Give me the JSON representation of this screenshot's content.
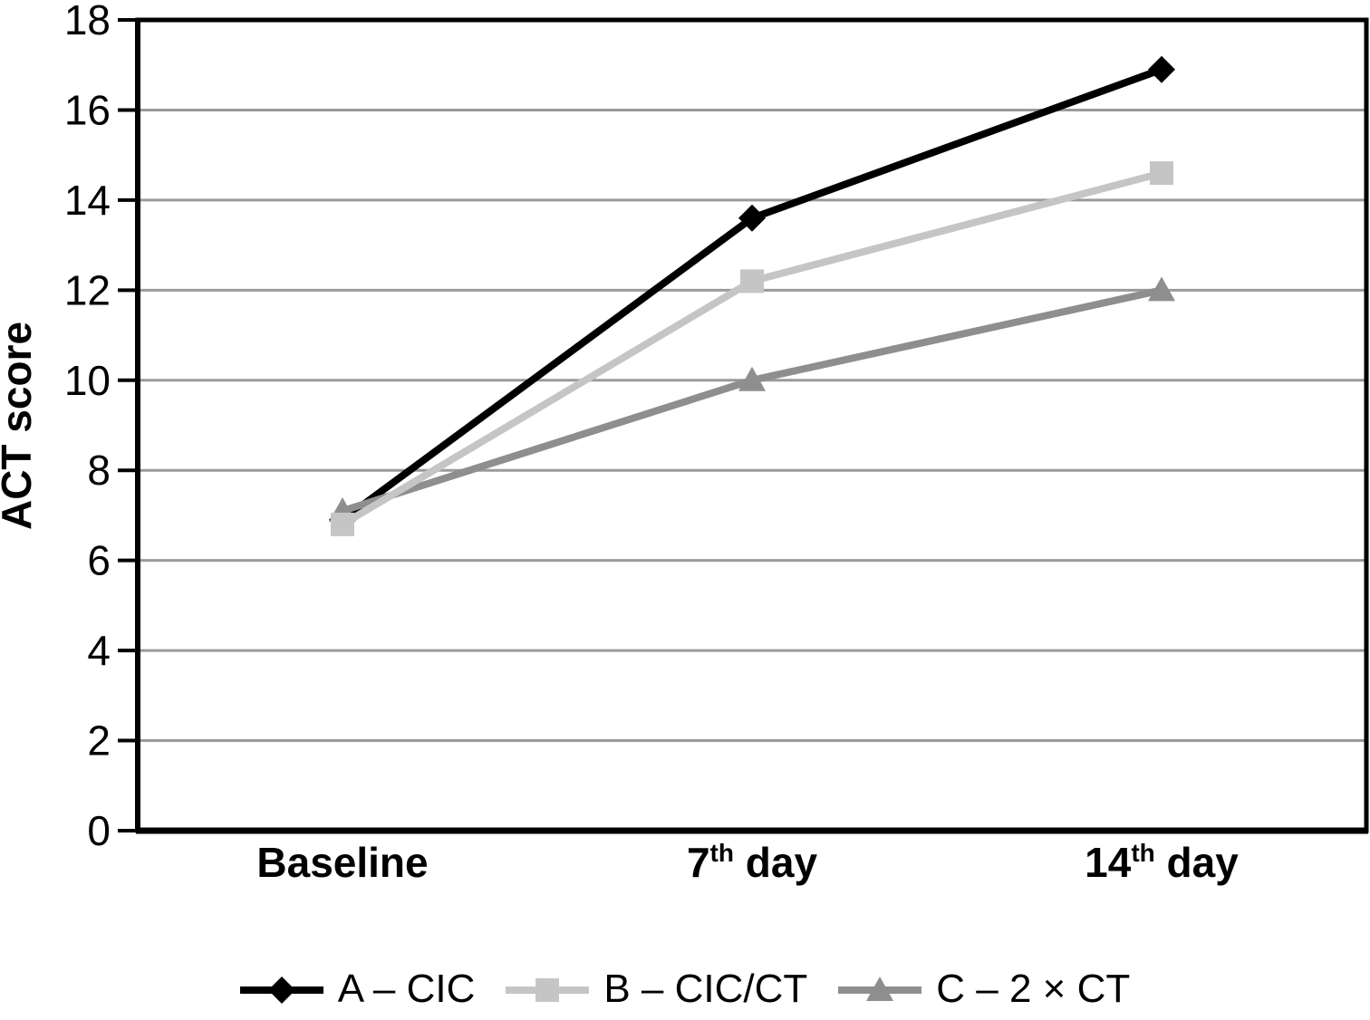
{
  "chart_data": {
    "type": "line",
    "title": "",
    "xlabel": "",
    "ylabel": "ACT score",
    "ylim": [
      0,
      18
    ],
    "yticks": [
      0,
      2,
      4,
      6,
      8,
      10,
      12,
      14,
      16,
      18
    ],
    "grid": "horizontal",
    "legend_position": "bottom",
    "categories": [
      "Baseline",
      "7th day",
      "14th day"
    ],
    "categories_display": [
      {
        "base": "Baseline",
        "sup": "",
        "rest": ""
      },
      {
        "base": "7",
        "sup": "th",
        "rest": " day"
      },
      {
        "base": "14",
        "sup": "th",
        "rest": " day"
      }
    ],
    "series": [
      {
        "name": "A – CIC",
        "marker": "diamond",
        "color": "#000000",
        "values": [
          6.9,
          13.6,
          16.9
        ]
      },
      {
        "name": "B – CIC/CT",
        "marker": "square",
        "color": "#c5c5c5",
        "values": [
          6.8,
          12.2,
          14.6
        ]
      },
      {
        "name": "C – 2 × CT",
        "marker": "triangle",
        "color": "#8e8e8e",
        "values": [
          7.1,
          10.0,
          12.0
        ]
      }
    ],
    "colors": {
      "gridline": "#9a9a9a",
      "axis": "#000000",
      "text": "#000000"
    }
  }
}
